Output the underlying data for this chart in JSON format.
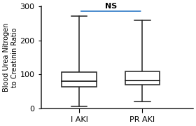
{
  "title": "NS",
  "ylabel": "Blood Urea Nitrogen\nto Creatinin Ratio",
  "categories": [
    "I AKI",
    "PR AKI"
  ],
  "boxes": [
    {
      "label": "I AKI",
      "whisker_low": 8,
      "q1": 65,
      "median": 80,
      "q3": 108,
      "whisker_high": 270
    },
    {
      "label": "PR AKI",
      "whisker_low": 22,
      "q1": 70,
      "median": 82,
      "q3": 110,
      "whisker_high": 258
    }
  ],
  "ylim": [
    0,
    300
  ],
  "yticks": [
    0,
    100,
    200,
    300
  ],
  "ns_line_y": 285,
  "ns_line_color": "#4488cc",
  "box_color": "#ffffff",
  "box_edge_color": "#222222",
  "whisker_color": "#222222",
  "median_color": "#222222",
  "background_color": "#ffffff",
  "plot_bg_color": "#ffffff",
  "box_width": 0.55,
  "positions": [
    1,
    2
  ],
  "xlim": [
    0.4,
    2.8
  ]
}
